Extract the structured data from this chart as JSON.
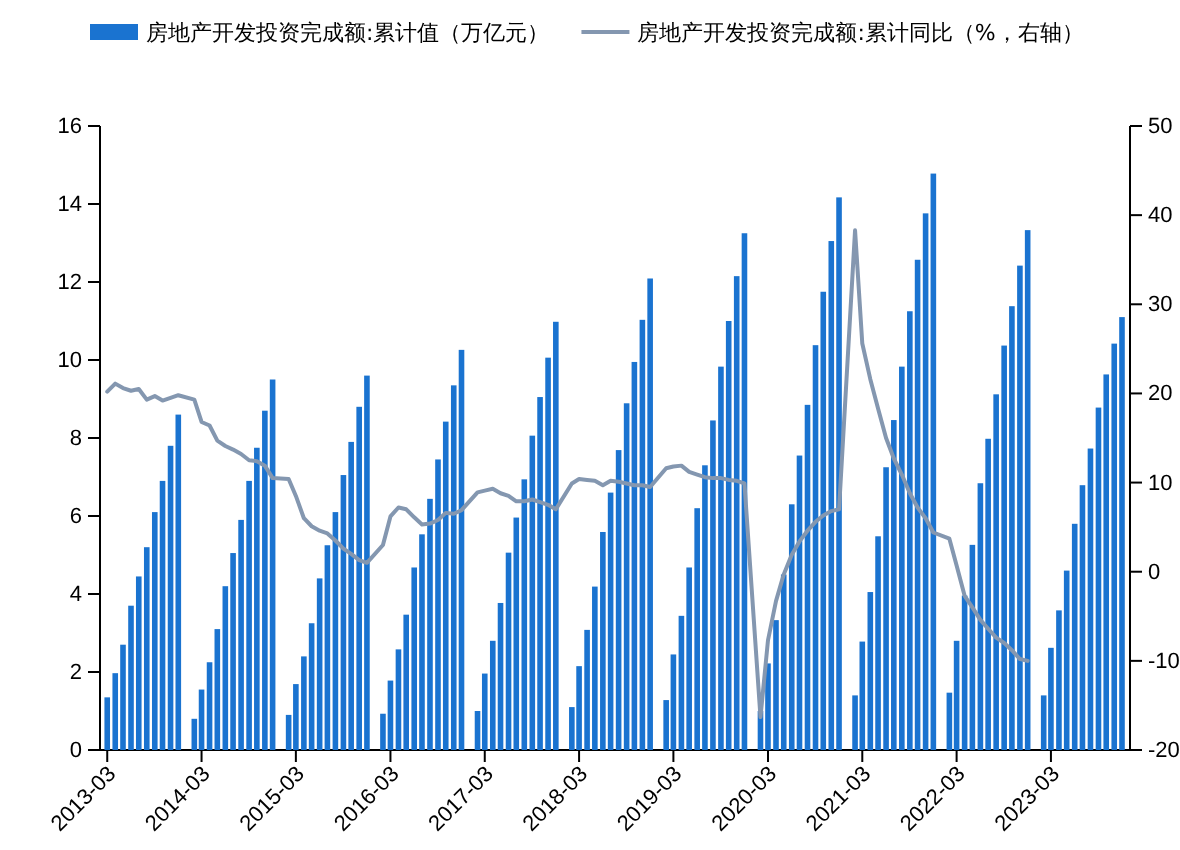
{
  "chart_data": {
    "type": "bar",
    "x": [
      "2013-03",
      "2013-04",
      "2013-05",
      "2013-06",
      "2013-07",
      "2013-08",
      "2013-09",
      "2013-10",
      "2013-11",
      "2013-12",
      "2014-02",
      "2014-03",
      "2014-04",
      "2014-05",
      "2014-06",
      "2014-07",
      "2014-08",
      "2014-09",
      "2014-10",
      "2014-11",
      "2014-12",
      "2015-02",
      "2015-03",
      "2015-04",
      "2015-05",
      "2015-06",
      "2015-07",
      "2015-08",
      "2015-09",
      "2015-10",
      "2015-11",
      "2015-12",
      "2016-02",
      "2016-03",
      "2016-04",
      "2016-05",
      "2016-06",
      "2016-07",
      "2016-08",
      "2016-09",
      "2016-10",
      "2016-11",
      "2016-12",
      "2017-02",
      "2017-03",
      "2017-04",
      "2017-05",
      "2017-06",
      "2017-07",
      "2017-08",
      "2017-09",
      "2017-10",
      "2017-11",
      "2017-12",
      "2018-02",
      "2018-03",
      "2018-04",
      "2018-05",
      "2018-06",
      "2018-07",
      "2018-08",
      "2018-09",
      "2018-10",
      "2018-11",
      "2018-12",
      "2019-02",
      "2019-03",
      "2019-04",
      "2019-05",
      "2019-06",
      "2019-07",
      "2019-08",
      "2019-09",
      "2019-10",
      "2019-11",
      "2019-12",
      "2020-02",
      "2020-03",
      "2020-04",
      "2020-05",
      "2020-06",
      "2020-07",
      "2020-08",
      "2020-09",
      "2020-10",
      "2020-11",
      "2020-12",
      "2021-02",
      "2021-03",
      "2021-04",
      "2021-05",
      "2021-06",
      "2021-07",
      "2021-08",
      "2021-09",
      "2021-10",
      "2021-11",
      "2021-12",
      "2022-02",
      "2022-03",
      "2022-04",
      "2022-05",
      "2022-06",
      "2022-07",
      "2022-08",
      "2022-09",
      "2022-10",
      "2022-11",
      "2022-12",
      "2023-02",
      "2023-03",
      "2023-04",
      "2023-05",
      "2023-06",
      "2023-07",
      "2023-08",
      "2023-09",
      "2023-10",
      "2023-11",
      "2023-12"
    ],
    "series": [
      {
        "name": "房地产开发投资完成额:累计值（万亿元）",
        "color": "#1a73d0",
        "values": [
          1.35,
          1.97,
          2.7,
          3.7,
          4.45,
          5.2,
          6.1,
          6.9,
          7.8,
          8.6,
          0.8,
          1.55,
          2.25,
          3.1,
          4.2,
          5.05,
          5.9,
          6.9,
          7.75,
          8.7,
          9.5,
          0.9,
          1.69,
          2.4,
          3.25,
          4.4,
          5.25,
          6.1,
          7.05,
          7.9,
          8.8,
          9.6,
          0.93,
          1.78,
          2.58,
          3.47,
          4.68,
          5.53,
          6.44,
          7.45,
          8.42,
          9.35,
          10.26,
          1.0,
          1.96,
          2.8,
          3.77,
          5.06,
          5.96,
          6.94,
          8.06,
          9.05,
          10.06,
          10.98,
          1.1,
          2.15,
          3.08,
          4.19,
          5.59,
          6.6,
          7.69,
          8.89,
          9.95,
          11.03,
          12.09,
          1.28,
          2.45,
          3.44,
          4.68,
          6.2,
          7.3,
          8.45,
          9.83,
          11.0,
          12.15,
          13.25,
          1.0,
          2.22,
          3.33,
          4.5,
          6.3,
          7.55,
          8.85,
          10.38,
          11.75,
          13.05,
          14.17,
          1.4,
          2.78,
          4.05,
          5.48,
          7.25,
          8.46,
          9.83,
          11.25,
          12.57,
          13.76,
          14.78,
          1.47,
          2.8,
          3.96,
          5.26,
          6.84,
          7.98,
          9.12,
          10.37,
          11.38,
          12.42,
          13.33,
          1.4,
          2.62,
          3.58,
          4.6,
          5.8,
          6.79,
          7.73,
          8.78,
          9.63,
          10.42,
          11.1
        ]
      },
      {
        "name": "房地产开发投资完成额:累计同比（%，右轴）",
        "type": "line",
        "axis": "y2",
        "color": "#8497b0",
        "values": [
          20.2,
          21.1,
          20.6,
          20.3,
          20.5,
          19.3,
          19.7,
          19.2,
          19.5,
          19.8,
          19.3,
          16.8,
          16.4,
          14.7,
          14.1,
          13.7,
          13.2,
          12.5,
          12.4,
          11.9,
          10.5,
          10.4,
          8.5,
          6.0,
          5.1,
          4.6,
          4.3,
          3.5,
          2.6,
          2.0,
          1.3,
          1.0,
          3.0,
          6.2,
          7.2,
          7.0,
          6.1,
          5.3,
          5.4,
          5.8,
          6.6,
          6.5,
          6.9,
          8.9,
          9.1,
          9.3,
          8.8,
          8.5,
          7.9,
          7.9,
          8.1,
          7.8,
          7.5,
          7.0,
          9.9,
          10.4,
          10.3,
          10.2,
          9.7,
          10.2,
          10.1,
          9.9,
          9.7,
          9.7,
          9.5,
          11.6,
          11.8,
          11.9,
          11.2,
          10.9,
          10.6,
          10.5,
          10.5,
          10.3,
          10.2,
          9.9,
          -16.3,
          -7.7,
          -3.3,
          -0.3,
          1.9,
          3.4,
          4.6,
          5.6,
          6.3,
          6.8,
          7.0,
          38.3,
          25.6,
          21.6,
          18.3,
          15.0,
          12.7,
          10.9,
          8.8,
          7.2,
          6.0,
          4.4,
          3.7,
          0.7,
          -2.7,
          -4.0,
          -5.4,
          -6.4,
          -7.4,
          -8.0,
          -8.8,
          -9.8,
          -10.0,
          null,
          null,
          null,
          null,
          null,
          null,
          null,
          null,
          null,
          null,
          null
        ]
      }
    ],
    "xlim": [
      "2013-02",
      "2024-01"
    ],
    "xticks": [
      "2013-03",
      "2014-03",
      "2015-03",
      "2016-03",
      "2017-03",
      "2018-03",
      "2019-03",
      "2020-03",
      "2021-03",
      "2022-03",
      "2023-03"
    ],
    "ylim": [
      0,
      16
    ],
    "yticks": [
      0,
      2,
      4,
      6,
      8,
      10,
      12,
      14,
      16
    ],
    "y2lim": [
      -20,
      50
    ],
    "y2ticks": [
      -20,
      -10,
      0,
      10,
      20,
      30,
      40,
      50
    ],
    "grid": false,
    "legend": "top"
  }
}
